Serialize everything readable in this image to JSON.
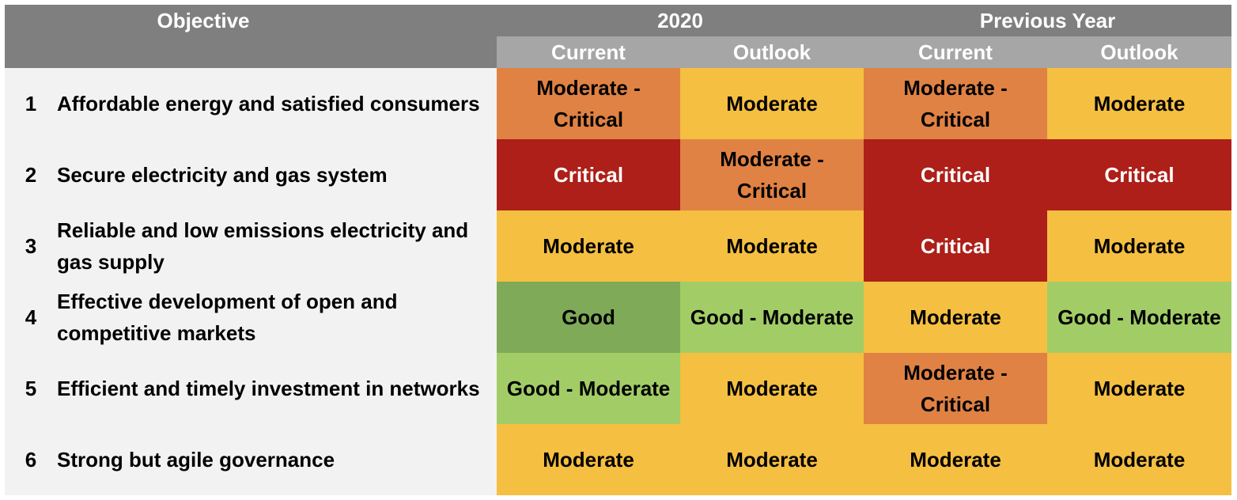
{
  "header": {
    "objective_label": "Objective",
    "groups": [
      "2020",
      "Previous Year"
    ],
    "subheaders": [
      "Current",
      "Outlook",
      "Current",
      "Outlook"
    ]
  },
  "rows": [
    {
      "number": "1",
      "objective": "Affordable energy and satisfied consumers",
      "statuses": [
        "Moderate - Critical",
        "Moderate",
        "Moderate - Critical",
        "Moderate"
      ]
    },
    {
      "number": "2",
      "objective": "Secure electricity and gas system",
      "statuses": [
        "Critical",
        "Moderate - Critical",
        "Critical",
        "Critical"
      ]
    },
    {
      "number": "3",
      "objective": "Reliable and low emissions electricity and gas supply",
      "statuses": [
        "Moderate",
        "Moderate",
        "Critical",
        "Moderate"
      ]
    },
    {
      "number": "4",
      "objective": "Effective development of open and competitive markets",
      "statuses": [
        "Good",
        "Good - Moderate",
        "Moderate",
        "Good - Moderate"
      ]
    },
    {
      "number": "5",
      "objective": "Efficient and timely investment in networks",
      "statuses": [
        "Good - Moderate",
        "Moderate",
        "Moderate - Critical",
        "Moderate"
      ]
    },
    {
      "number": "6",
      "objective": "Strong but agile governance",
      "statuses": [
        "Moderate",
        "Moderate",
        "Moderate",
        "Moderate"
      ]
    }
  ],
  "status_colors": {
    "Critical": "#ad1f18",
    "Moderate - Critical": "#e08244",
    "Moderate": "#f5bf41",
    "Good - Moderate": "#a2cd66",
    "Good": "#7faa57"
  }
}
